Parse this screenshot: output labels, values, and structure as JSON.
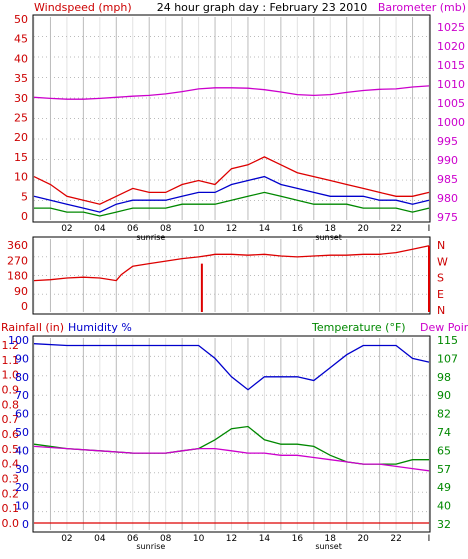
{
  "chart_data": [
    {
      "type": "line",
      "title": "24 hour graph day : February 23 2010",
      "left_axis_label": "Windspeed (mph)",
      "right_axis_label": "Barometer (mb)",
      "left_axis_ticks": [
        "0",
        "5",
        "10",
        "15",
        "20",
        "25",
        "30",
        "35",
        "40",
        "45",
        "50"
      ],
      "right_axis_ticks": [
        "975",
        "980",
        "985",
        "990",
        "995",
        "1000",
        "1005",
        "1010",
        "1015",
        "1020",
        "1025"
      ],
      "ylim_left": [
        0,
        50
      ],
      "ylim_right": [
        972.5,
        1027.5
      ],
      "x_tick_labels": [
        "02",
        "04",
        "06",
        "08",
        "10",
        "12",
        "14",
        "16",
        "18",
        "20",
        "22"
      ],
      "sunrise_label": "sunrise",
      "sunset_label": "sunset",
      "sunrise_hour": 7.1,
      "sunset_hour": 17.9,
      "grid": true,
      "series": [
        {
          "key": "barometer",
          "color": "#cc00cc",
          "x": [
            0,
            1,
            2,
            3,
            4,
            5,
            6,
            7,
            8,
            9,
            10,
            11,
            12,
            13,
            14,
            15,
            16,
            17,
            18,
            19,
            20,
            21,
            22,
            23,
            24
          ],
          "values": [
            1006.5,
            1006.2,
            1006.0,
            1006.0,
            1006.2,
            1006.5,
            1006.8,
            1007.0,
            1007.4,
            1008.0,
            1008.7,
            1009.0,
            1009.0,
            1008.9,
            1008.5,
            1007.9,
            1007.2,
            1007.0,
            1007.2,
            1007.8,
            1008.3,
            1008.6,
            1008.7,
            1009.2,
            1009.5
          ]
        },
        {
          "key": "windspeed_max",
          "color": "#dd0000",
          "x": [
            0,
            1,
            2,
            3,
            4,
            5,
            6,
            7,
            8,
            9,
            10,
            11,
            12,
            13,
            14,
            15,
            16,
            17,
            18,
            19,
            20,
            21,
            22,
            23,
            24
          ],
          "values": [
            10,
            8,
            5,
            4,
            3,
            5,
            7,
            6,
            6,
            8,
            9,
            8,
            12,
            13,
            15,
            13,
            11,
            10,
            9,
            8,
            7,
            6,
            5,
            5,
            6
          ]
        },
        {
          "key": "windspeed_avg",
          "color": "#0000cc",
          "x": [
            0,
            1,
            2,
            3,
            4,
            5,
            6,
            7,
            8,
            9,
            10,
            11,
            12,
            13,
            14,
            15,
            16,
            17,
            18,
            19,
            20,
            21,
            22,
            23,
            24
          ],
          "values": [
            5,
            4,
            3,
            2,
            1,
            3,
            4,
            4,
            4,
            5,
            6,
            6,
            8,
            9,
            10,
            8,
            7,
            6,
            5,
            5,
            5,
            4,
            4,
            3,
            4
          ]
        },
        {
          "key": "windspeed_min",
          "color": "#008800",
          "x": [
            0,
            1,
            2,
            3,
            4,
            5,
            6,
            7,
            8,
            9,
            10,
            11,
            12,
            13,
            14,
            15,
            16,
            17,
            18,
            19,
            20,
            21,
            22,
            23,
            24
          ],
          "values": [
            2,
            2,
            1,
            1,
            0,
            1,
            2,
            2,
            2,
            3,
            3,
            3,
            4,
            5,
            6,
            5,
            4,
            3,
            3,
            3,
            2,
            2,
            2,
            1,
            2
          ]
        }
      ]
    },
    {
      "type": "line",
      "left_axis_ticks": [
        "360",
        "270",
        "180",
        "90",
        "0"
      ],
      "compass_labels": [
        "N",
        "W",
        "S",
        "E",
        "N"
      ],
      "ylim": [
        0,
        360
      ],
      "x_tick_labels": [],
      "grid": true,
      "series": [
        {
          "key": "wind_direction",
          "color": "#dd0000",
          "x": [
            0,
            1,
            2,
            3,
            4,
            5,
            5.3,
            6,
            7,
            8,
            9,
            10,
            10.7,
            11,
            12,
            13,
            14,
            15,
            16,
            17,
            18,
            19,
            20,
            21,
            22,
            23,
            24
          ],
          "values": [
            150,
            155,
            165,
            170,
            165,
            150,
            185,
            235,
            250,
            265,
            280,
            290,
            300,
            305,
            305,
            300,
            305,
            295,
            290,
            295,
            300,
            300,
            305,
            305,
            315,
            335,
            355
          ]
        }
      ]
    },
    {
      "type": "line",
      "left_axis_label_1": "Rainfall (in)",
      "left_axis_label_2": "Humidity %",
      "right_axis_label_1": "Temperature (°F)",
      "right_axis_label_2": "Dew Point",
      "left_axis_ticks": [
        "1.2",
        "1.1",
        "1.0",
        "0.9",
        "0.8",
        "0.7",
        "0.6",
        "0.5",
        "0.4",
        "0.3",
        "0.2",
        "0.1",
        "0.0"
      ],
      "humidity_axis_ticks": [
        "100",
        "90",
        "80",
        "70",
        "60",
        "50",
        "40",
        "30",
        "20",
        "10",
        "0"
      ],
      "right_axis_ticks": [
        "115",
        "107",
        "98",
        "90",
        "82",
        "74",
        "65",
        "57",
        "49",
        "40",
        "32"
      ],
      "ylim_humidity": [
        0,
        100
      ],
      "ylim_temperature": [
        32,
        115
      ],
      "x_tick_labels": [
        "02",
        "04",
        "06",
        "08",
        "10",
        "12",
        "14",
        "16",
        "18",
        "20",
        "22"
      ],
      "sunrise_label": "sunrise",
      "sunset_label": "sunset",
      "grid": true,
      "series": [
        {
          "key": "humidity",
          "color": "#0000cc",
          "axis": "humidity",
          "x": [
            0,
            2,
            4,
            6,
            8,
            9,
            10,
            11,
            12,
            13,
            14,
            15,
            16,
            17,
            18,
            19,
            20,
            21,
            22,
            23,
            24
          ],
          "values": [
            98,
            97,
            97,
            97,
            97,
            97,
            97,
            90,
            80,
            73,
            80,
            80,
            80,
            78,
            85,
            92,
            97,
            97,
            97,
            90,
            88
          ]
        },
        {
          "key": "temperature",
          "color": "#008800",
          "axis": "temperature",
          "x": [
            0,
            2,
            4,
            6,
            8,
            9,
            10,
            11,
            12,
            13,
            14,
            15,
            16,
            17,
            18,
            19,
            20,
            21,
            22,
            23,
            24
          ],
          "values": [
            68,
            66,
            65,
            64,
            64,
            65,
            66,
            70,
            75,
            76,
            70,
            68,
            68,
            67,
            63,
            60,
            59,
            59,
            59,
            61,
            61
          ]
        },
        {
          "key": "dew_point",
          "color": "#cc00cc",
          "axis": "temperature",
          "x": [
            0,
            2,
            4,
            6,
            8,
            9,
            10,
            11,
            12,
            13,
            14,
            15,
            16,
            17,
            18,
            19,
            20,
            21,
            22,
            23,
            24
          ],
          "values": [
            67,
            66,
            65,
            64,
            64,
            65,
            66,
            66,
            65,
            64,
            64,
            63,
            63,
            62,
            61,
            60,
            59,
            59,
            58,
            57,
            56
          ]
        },
        {
          "key": "rainfall",
          "color": "#dd0000",
          "axis": "rain",
          "x": [
            0,
            24
          ],
          "values": [
            0.0,
            0.0
          ]
        }
      ]
    }
  ]
}
